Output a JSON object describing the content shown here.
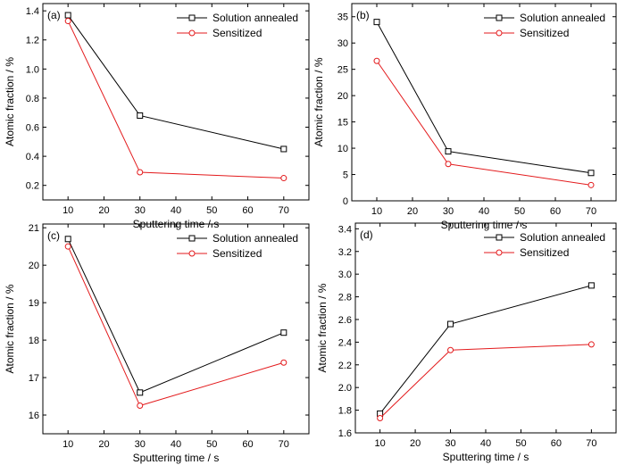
{
  "chart_data": [
    {
      "type": "line",
      "panel_label": "(a)",
      "xlabel": "Sputtering time / s",
      "ylabel": "Atomic fraction / %",
      "x": [
        10,
        30,
        70
      ],
      "xlim": [
        3,
        77
      ],
      "xticks": [
        10,
        20,
        30,
        40,
        50,
        60,
        70
      ],
      "ylim": [
        0.1,
        1.45
      ],
      "yticks": [
        0.2,
        0.4,
        0.6,
        0.8,
        1.0,
        1.2,
        1.4
      ],
      "ytick_labels": [
        "0.2",
        "0.4",
        "0.6",
        "0.8",
        "1.0",
        "1.2",
        "1.4"
      ],
      "legend_position": "top-right",
      "series": [
        {
          "name": "Solution annealed",
          "values": [
            1.37,
            0.68,
            0.45
          ],
          "color": "#000000",
          "marker": "square"
        },
        {
          "name": "Sensitized",
          "values": [
            1.33,
            0.29,
            0.25
          ],
          "color": "#e31a1c",
          "marker": "circle"
        }
      ]
    },
    {
      "type": "line",
      "panel_label": "(b)",
      "xlabel": "Sputtering time / s",
      "ylabel": "Atomic fraction / %",
      "x": [
        10,
        30,
        70
      ],
      "xlim": [
        3,
        77
      ],
      "xticks": [
        10,
        20,
        30,
        40,
        50,
        60,
        70
      ],
      "ylim": [
        0,
        37.5
      ],
      "yticks": [
        0,
        5,
        10,
        15,
        20,
        25,
        30,
        35
      ],
      "ytick_labels": [
        "0",
        "5",
        "10",
        "15",
        "20",
        "25",
        "30",
        "35"
      ],
      "legend_position": "top-right",
      "series": [
        {
          "name": "Solution annealed",
          "values": [
            34.0,
            9.4,
            5.3
          ],
          "color": "#000000",
          "marker": "square"
        },
        {
          "name": "Sensitized",
          "values": [
            26.6,
            7.0,
            3.0
          ],
          "color": "#e31a1c",
          "marker": "circle"
        }
      ]
    },
    {
      "type": "line",
      "panel_label": "(c)",
      "xlabel": "Sputtering time / s",
      "ylabel": "Atomic fraction / %",
      "x": [
        10,
        30,
        70
      ],
      "xlim": [
        3,
        77
      ],
      "xticks": [
        10,
        20,
        30,
        40,
        50,
        60,
        70
      ],
      "ylim": [
        15.5,
        21.1
      ],
      "yticks": [
        16,
        17,
        18,
        19,
        20,
        21
      ],
      "ytick_labels": [
        "16",
        "17",
        "18",
        "19",
        "20",
        "21"
      ],
      "legend_position": "top-right",
      "series": [
        {
          "name": "Solution annealed",
          "values": [
            20.7,
            16.6,
            18.2
          ],
          "color": "#000000",
          "marker": "square"
        },
        {
          "name": "Sensitized",
          "values": [
            20.5,
            16.25,
            17.4
          ],
          "color": "#e31a1c",
          "marker": "circle"
        }
      ]
    },
    {
      "type": "line",
      "panel_label": "(d)",
      "xlabel": "Sputtering time / s",
      "ylabel": "Atomic fraction / %",
      "x": [
        10,
        30,
        70
      ],
      "xlim": [
        3,
        77
      ],
      "xticks": [
        10,
        20,
        30,
        40,
        50,
        60,
        70
      ],
      "ylim": [
        1.6,
        3.45
      ],
      "yticks": [
        1.6,
        1.8,
        2.0,
        2.2,
        2.4,
        2.6,
        2.8,
        3.0,
        3.2,
        3.4
      ],
      "ytick_labels": [
        "1.6",
        "1.8",
        "2.0",
        "2.2",
        "2.4",
        "2.6",
        "2.8",
        "3.0",
        "3.2",
        "3.4"
      ],
      "legend_position": "top-right",
      "series": [
        {
          "name": "Solution annealed",
          "values": [
            1.77,
            2.56,
            2.9
          ],
          "color": "#000000",
          "marker": "square"
        },
        {
          "name": "Sensitized",
          "values": [
            1.73,
            2.33,
            2.38
          ],
          "color": "#e31a1c",
          "marker": "circle"
        }
      ]
    }
  ]
}
